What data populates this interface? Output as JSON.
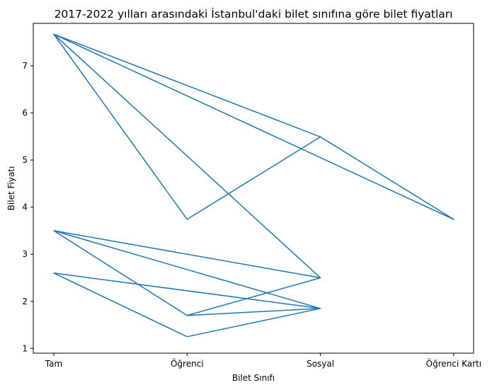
{
  "chart_data": {
    "type": "line",
    "title": "2017-2022 yılları arasındaki İstanbul'daki bilet sınıfına göre bilet fiyatları",
    "xlabel": "Bilet Sınıfı",
    "ylabel": "Bilet Fiyatı",
    "categories": [
      "Tam",
      "Öğrenci",
      "Sosyal",
      "Öğrenci Kartı"
    ],
    "y_ticks": [
      1,
      2,
      3,
      4,
      5,
      6,
      7
    ],
    "ylim": [
      0.9,
      7.9
    ],
    "grid": false,
    "legend": "none",
    "line_color": "#1f77b4",
    "series": [
      {
        "points": [
          [
            "Tam",
            2.6
          ],
          [
            "Öğrenci",
            1.25
          ],
          [
            "Sosyal",
            1.85
          ],
          [
            "Tam",
            2.6
          ],
          [
            "Öğrenci",
            1.25
          ],
          [
            "Sosyal",
            1.85
          ],
          [
            "Tam",
            3.5
          ],
          [
            "Öğrenci",
            1.7
          ],
          [
            "Sosyal",
            2.5
          ],
          [
            "Tam",
            3.5
          ],
          [
            "Öğrenci",
            1.7
          ],
          [
            "Sosyal",
            2.5
          ],
          [
            "Tam",
            3.5
          ],
          [
            "Öğrenci",
            1.7
          ],
          [
            "Sosyal",
            1.85
          ],
          [
            "Tam",
            3.5
          ],
          [
            "Öğrenci",
            1.7
          ],
          [
            "Sosyal",
            2.5
          ],
          [
            "Tam",
            7.67
          ],
          [
            "Öğrenci",
            3.74
          ],
          [
            "Sosyal",
            5.49
          ],
          [
            "Tam",
            7.67
          ],
          [
            "Öğrenci",
            3.74
          ],
          [
            "Sosyal",
            5.49
          ],
          [
            "Öğrenci Kartı",
            3.74
          ],
          [
            "Tam",
            7.67
          ],
          [
            "Sosyal",
            5.49
          ],
          [
            "Tam",
            7.67
          ],
          [
            "Sosyal",
            2.5
          ]
        ]
      }
    ]
  }
}
